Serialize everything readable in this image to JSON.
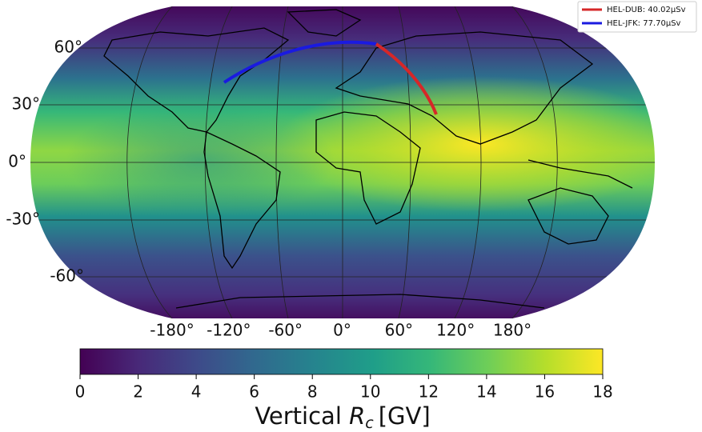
{
  "legend": [
    {
      "label": "HEL-DUB: 40.02µSv",
      "color": "#d62728"
    },
    {
      "label": "HEL-JFK: 77.70µSv",
      "color": "#1a1ae0"
    }
  ],
  "lat_labels": [
    "60°",
    "30°",
    "0°",
    "-30°",
    "-60°"
  ],
  "lon_labels": [
    "-180°",
    "-120°",
    "-60°",
    "0°",
    "60°",
    "120°",
    "180°"
  ],
  "colorbar": {
    "label_text": "Vertical",
    "label_symbol": "R",
    "label_sub": "c",
    "label_unit": "[GV]",
    "lim": [
      0,
      18
    ],
    "ticks": [
      0,
      2,
      4,
      6,
      8,
      10,
      12,
      14,
      16,
      18
    ]
  }
}
